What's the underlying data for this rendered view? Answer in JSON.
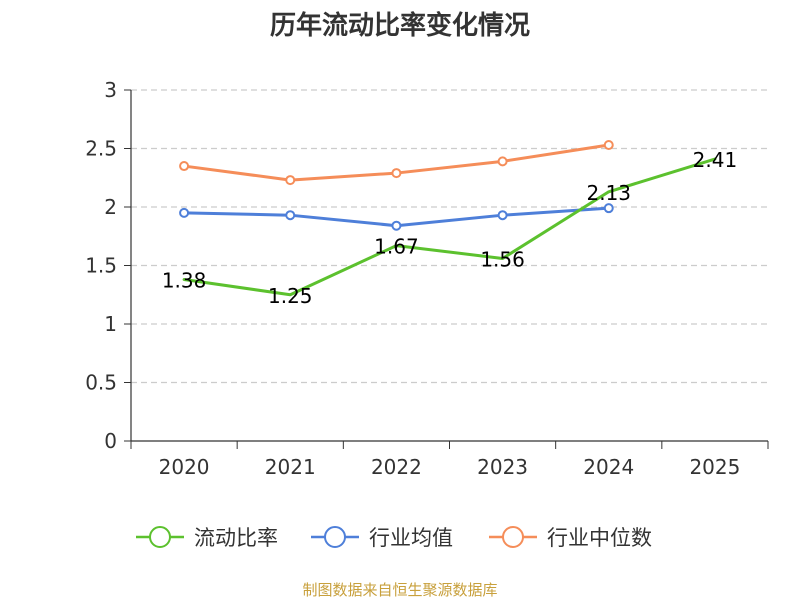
{
  "chart_data": {
    "type": "line",
    "title": "历年流动比率变化情况",
    "categories": [
      "2020",
      "2021",
      "2022",
      "2023",
      "2024",
      "2025"
    ],
    "ylim": [
      0,
      3
    ],
    "yticks": [
      0,
      0.5,
      1,
      1.5,
      2,
      2.5,
      3
    ],
    "ytick_labels": [
      "0",
      "0.5",
      "1",
      "1.5",
      "2",
      "2.5",
      "3"
    ],
    "grid": true,
    "legend_position": "bottom",
    "series": [
      {
        "name": "流动比率",
        "color": "#5cc12e",
        "values": [
          1.38,
          1.25,
          1.67,
          1.56,
          2.13,
          2.41
        ],
        "labels": [
          "1.38",
          "1.25",
          "1.67",
          "1.56",
          "2.13",
          "2.41"
        ],
        "show_labels": true,
        "show_markers": false
      },
      {
        "name": "行业均值",
        "color": "#4e7fd9",
        "values": [
          1.95,
          1.93,
          1.84,
          1.93,
          1.99,
          null
        ],
        "show_labels": false,
        "show_markers": true
      },
      {
        "name": "行业中位数",
        "color": "#f58d59",
        "values": [
          2.35,
          2.23,
          2.29,
          2.39,
          2.53,
          null
        ],
        "show_labels": false,
        "show_markers": true
      }
    ]
  },
  "source_note": "制图数据来自恒生聚源数据库"
}
